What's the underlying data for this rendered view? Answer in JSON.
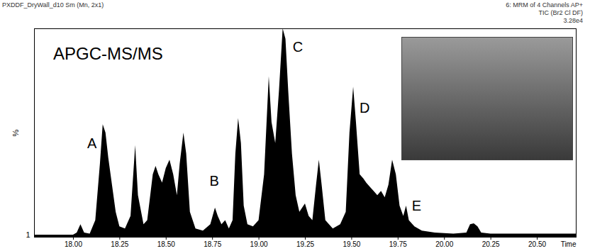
{
  "chart_data": {
    "type": "area",
    "title": "PXDDF_DryWall_d10 Sm (Mn, 2x1)",
    "subtitle": [
      "6: MRM of 4 Channels AP+",
      "TIC (Br2 Cl DF)",
      "3.28e4"
    ],
    "label": "APGC-MS/MS",
    "xlabel": "Time",
    "ylabel": "%",
    "color": "#000000",
    "x": [
      17.79,
      18.0,
      18.02,
      18.04,
      18.06,
      18.09,
      18.12,
      18.145,
      18.16,
      18.175,
      18.19,
      18.21,
      18.23,
      18.25,
      18.28,
      18.31,
      18.335,
      18.35,
      18.38,
      18.4,
      18.43,
      18.445,
      18.46,
      18.48,
      18.5,
      18.52,
      18.54,
      18.56,
      18.575,
      18.595,
      18.61,
      18.63,
      18.66,
      18.7,
      18.74,
      18.765,
      18.78,
      18.8,
      18.82,
      18.84,
      18.86,
      18.875,
      18.89,
      18.905,
      18.92,
      18.94,
      18.97,
      19.0,
      19.03,
      19.055,
      19.07,
      19.09,
      19.11,
      19.13,
      19.145,
      19.16,
      19.18,
      19.2,
      19.22,
      19.25,
      19.27,
      19.29,
      19.31,
      19.325,
      19.34,
      19.36,
      19.4,
      19.44,
      19.47,
      19.49,
      19.51,
      19.525,
      19.545,
      19.565,
      19.58,
      19.6,
      19.62,
      19.64,
      19.66,
      19.68,
      19.7,
      19.72,
      19.74,
      19.76,
      19.78,
      19.795,
      19.81,
      19.84,
      19.88,
      19.95,
      20.05,
      20.12,
      20.14,
      20.16,
      20.18,
      20.2,
      20.25,
      20.35,
      20.5,
      20.71
    ],
    "values": [
      1,
      1,
      2,
      6,
      2,
      1.5,
      8,
      35,
      54,
      50,
      38,
      25,
      12,
      5,
      4,
      10,
      44,
      20,
      6,
      8,
      30,
      34,
      30,
      26,
      33,
      37,
      30,
      20,
      35,
      50,
      40,
      12,
      4,
      3,
      6,
      14,
      10,
      6,
      8,
      4,
      8,
      40,
      57,
      45,
      15,
      6,
      5,
      8,
      30,
      77,
      55,
      45,
      70,
      100,
      95,
      70,
      40,
      20,
      12,
      16,
      10,
      8,
      25,
      37,
      25,
      8,
      4,
      6,
      12,
      50,
      72,
      55,
      30,
      28,
      26,
      24,
      22,
      20,
      22,
      19,
      25,
      37,
      30,
      15,
      10,
      15,
      8,
      5,
      3,
      2,
      1.5,
      2,
      6,
      6.5,
      5,
      2,
      1.5,
      1.5,
      1.5,
      1.5
    ],
    "xlim": [
      17.79,
      20.71
    ],
    "xticks": [
      {
        "value": 18,
        "label": "18.00"
      },
      {
        "value": 18.25,
        "label": "18.25"
      },
      {
        "value": 18.5,
        "label": "18.50"
      },
      {
        "value": 18.75,
        "label": "18.75"
      },
      {
        "value": 19,
        "label": "19.00"
      },
      {
        "value": 19.25,
        "label": "19.25"
      },
      {
        "value": 19.5,
        "label": "19.50"
      },
      {
        "value": 19.75,
        "label": "19.75"
      },
      {
        "value": 20,
        "label": "20.00"
      },
      {
        "value": 20.25,
        "label": "20.25"
      },
      {
        "value": 20.5,
        "label": "20.50"
      }
    ],
    "ylim": [
      0,
      100
    ],
    "yticks": [
      1
    ],
    "annotations": [
      {
        "text": "A",
        "x": 18.1,
        "y": 45
      },
      {
        "text": "B",
        "x": 18.76,
        "y": 27
      },
      {
        "text": "C",
        "x": 19.21,
        "y": 91
      },
      {
        "text": "D",
        "x": 19.57,
        "y": 62
      },
      {
        "text": "E",
        "x": 19.85,
        "y": 15
      }
    ]
  }
}
